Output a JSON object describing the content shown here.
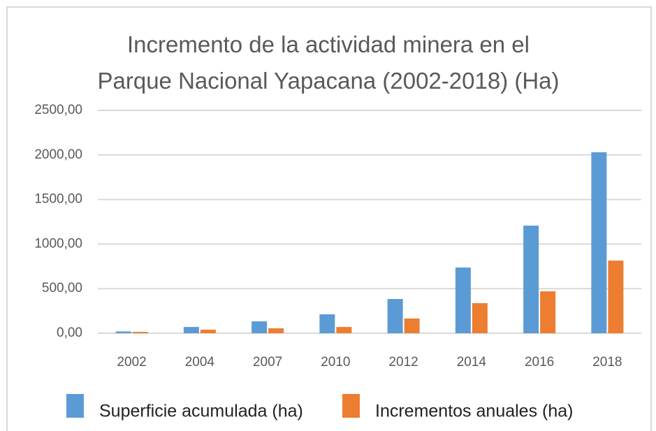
{
  "chart_data": {
    "type": "bar",
    "title": "Incremento de la actividad minera en el Parque Nacional Yapacana (2002-2018) (Ha)",
    "categories": [
      "2002",
      "2004",
      "2007",
      "2010",
      "2012",
      "2014",
      "2016",
      "2018"
    ],
    "series": [
      {
        "name": "Superficie acumulada (ha)",
        "color": "#5b9bd5",
        "values": [
          20,
          70,
          133,
          212,
          384,
          737,
          1207,
          2030
        ]
      },
      {
        "name": "Incrementos anuales (ha)",
        "color": "#ed7d31",
        "values": [
          15,
          40,
          55,
          70,
          165,
          337,
          470,
          815
        ]
      }
    ],
    "ylim": [
      0,
      2500
    ],
    "yticks": [
      {
        "value": 0,
        "label": "0,00"
      },
      {
        "value": 500,
        "label": "500,00"
      },
      {
        "value": 1000,
        "label": "1000,00"
      },
      {
        "value": 1500,
        "label": "1500,00"
      },
      {
        "value": 2000,
        "label": "2000,00"
      },
      {
        "value": 2500,
        "label": "2500,00"
      }
    ],
    "grid": true,
    "legend": "bottom"
  }
}
